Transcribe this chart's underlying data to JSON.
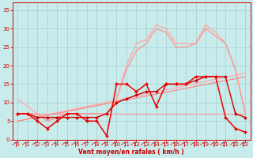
{
  "background_color": "#c8ecec",
  "grid_color": "#a8d4d4",
  "xlabel": "Vent moyen/en rafales ( km/h )",
  "xlabel_color": "#cc0000",
  "tick_color": "#cc0000",
  "xlim": [
    -0.5,
    23.5
  ],
  "ylim": [
    0,
    37
  ],
  "xticks": [
    0,
    1,
    2,
    3,
    4,
    5,
    6,
    7,
    8,
    9,
    10,
    11,
    12,
    13,
    14,
    15,
    16,
    17,
    18,
    19,
    20,
    21,
    22,
    23
  ],
  "yticks": [
    0,
    5,
    10,
    15,
    20,
    25,
    30,
    35
  ],
  "series": [
    {
      "x": [
        0,
        23
      ],
      "y": [
        7,
        7
      ],
      "color": "#ff9999",
      "lw": 0.9,
      "marker": null,
      "zorder": 2
    },
    {
      "x": [
        0,
        23
      ],
      "y": [
        5,
        18
      ],
      "color": "#ffaaaa",
      "lw": 0.9,
      "marker": null,
      "zorder": 2
    },
    {
      "x": [
        0,
        23
      ],
      "y": [
        5,
        17
      ],
      "color": "#ff8888",
      "lw": 0.9,
      "marker": null,
      "zorder": 2
    },
    {
      "x": [
        0,
        1,
        2,
        3,
        4,
        5,
        6,
        7,
        8,
        9,
        10,
        11,
        12,
        13,
        14,
        15,
        16,
        17,
        18,
        19,
        20,
        21,
        22,
        23
      ],
      "y": [
        11,
        9,
        7,
        5,
        6,
        7,
        7,
        7,
        7,
        7,
        11,
        20,
        26,
        27,
        31,
        30,
        26,
        26,
        26,
        31,
        29,
        26,
        19,
        7
      ],
      "color": "#ffaaaa",
      "lw": 1.0,
      "marker": null,
      "zorder": 3
    },
    {
      "x": [
        0,
        1,
        2,
        3,
        4,
        5,
        6,
        7,
        8,
        9,
        10,
        11,
        12,
        13,
        14,
        15,
        16,
        17,
        18,
        19,
        20,
        21,
        22,
        23
      ],
      "y": [
        7,
        7,
        7,
        5,
        6,
        7,
        7,
        7,
        7,
        7,
        11,
        19,
        24,
        26,
        30,
        29,
        25,
        25,
        26,
        30,
        28,
        26,
        19,
        7
      ],
      "color": "#ff9999",
      "lw": 1.0,
      "marker": null,
      "zorder": 3
    },
    {
      "x": [
        0,
        1,
        2,
        3,
        4,
        5,
        6,
        7,
        8,
        9,
        10,
        11,
        12,
        13,
        14,
        15,
        16,
        17,
        18,
        19,
        20,
        21,
        22,
        23
      ],
      "y": [
        7,
        7,
        6,
        6,
        6,
        6,
        6,
        6,
        6,
        7,
        10,
        11,
        12,
        13,
        13,
        15,
        15,
        15,
        16,
        17,
        17,
        17,
        7,
        6
      ],
      "color": "#cc0000",
      "lw": 1.0,
      "marker": "D",
      "ms": 2.0,
      "zorder": 4
    },
    {
      "x": [
        0,
        1,
        2,
        3,
        4,
        5,
        6,
        7,
        8,
        9,
        10,
        11,
        12,
        13,
        14,
        15,
        16,
        17,
        18,
        19,
        20,
        21,
        22,
        23
      ],
      "y": [
        7,
        7,
        5,
        3,
        5,
        7,
        7,
        5,
        5,
        1,
        15,
        15,
        13,
        15,
        9,
        15,
        15,
        15,
        17,
        17,
        17,
        6,
        3,
        2
      ],
      "color": "#ee0000",
      "lw": 1.1,
      "marker": "D",
      "ms": 2.0,
      "zorder": 5
    }
  ]
}
